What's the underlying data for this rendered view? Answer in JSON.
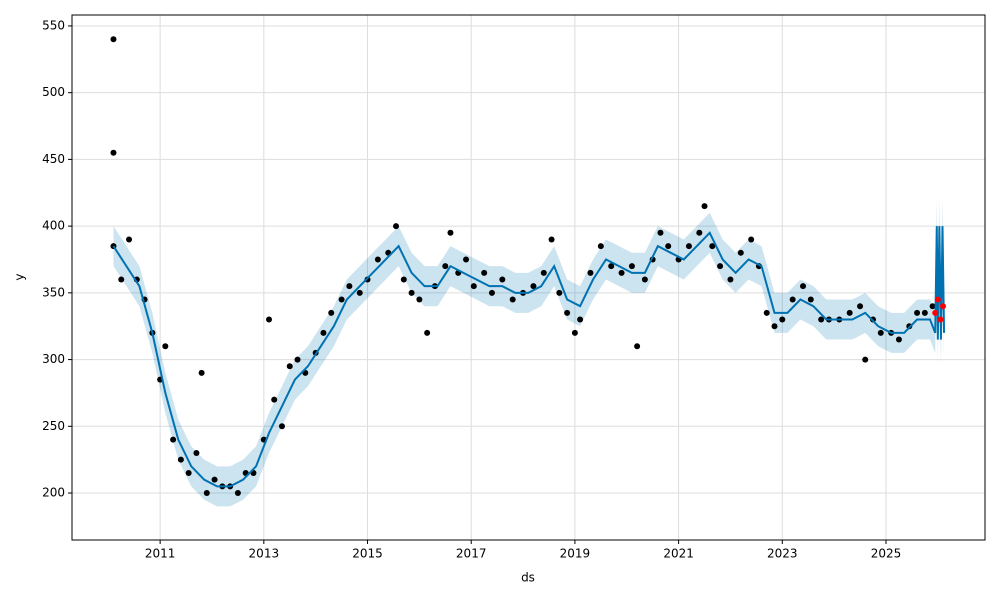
{
  "chart_data": {
    "type": "line",
    "xlabel": "ds",
    "ylabel": "y",
    "xlim": [
      2009.3,
      2026.91
    ],
    "ylim": [
      164.8,
      558.2
    ],
    "xticks": [
      2011,
      2013,
      2015,
      2017,
      2019,
      2021,
      2023,
      2025
    ],
    "yticks": [
      200,
      250,
      300,
      350,
      400,
      450,
      500,
      550
    ],
    "grid": true,
    "points": {
      "color": "#000000",
      "x": [
        2010.1,
        2010.1,
        2010.1,
        2010.25,
        2010.4,
        2010.55,
        2010.7,
        2010.85,
        2011.0,
        2011.1,
        2011.25,
        2011.4,
        2011.55,
        2011.7,
        2011.8,
        2011.9,
        2012.05,
        2012.2,
        2012.35,
        2012.5,
        2012.65,
        2012.8,
        2013.0,
        2013.1,
        2013.2,
        2013.35,
        2013.5,
        2013.65,
        2013.8,
        2014.0,
        2014.15,
        2014.3,
        2014.5,
        2014.65,
        2014.85,
        2015.0,
        2015.2,
        2015.4,
        2015.55,
        2015.7,
        2015.85,
        2016.0,
        2016.15,
        2016.3,
        2016.5,
        2016.6,
        2016.75,
        2016.9,
        2017.05,
        2017.25,
        2017.4,
        2017.6,
        2017.8,
        2018.0,
        2018.2,
        2018.4,
        2018.55,
        2018.7,
        2018.85,
        2019.0,
        2019.1,
        2019.3,
        2019.5,
        2019.7,
        2019.9,
        2020.1,
        2020.2,
        2020.35,
        2020.5,
        2020.65,
        2020.8,
        2021.0,
        2021.2,
        2021.4,
        2021.5,
        2021.65,
        2021.8,
        2022.0,
        2022.2,
        2022.4,
        2022.55,
        2022.7,
        2022.85,
        2023.0,
        2023.2,
        2023.4,
        2023.55,
        2023.75,
        2023.9,
        2024.1,
        2024.3,
        2024.5,
        2024.6,
        2024.75,
        2024.9,
        2025.1,
        2025.25,
        2025.45,
        2025.6,
        2025.75,
        2025.9
      ],
      "values": [
        385,
        540,
        455,
        360,
        390,
        360,
        345,
        320,
        285,
        310,
        240,
        225,
        215,
        230,
        290,
        200,
        210,
        205,
        205,
        200,
        215,
        215,
        240,
        330,
        270,
        250,
        295,
        300,
        290,
        305,
        320,
        335,
        345,
        355,
        350,
        360,
        375,
        380,
        400,
        360,
        350,
        345,
        320,
        355,
        370,
        395,
        365,
        375,
        355,
        365,
        350,
        360,
        345,
        350,
        355,
        365,
        390,
        350,
        335,
        320,
        330,
        365,
        385,
        370,
        365,
        370,
        310,
        360,
        375,
        395,
        385,
        375,
        385,
        395,
        415,
        385,
        370,
        360,
        380,
        390,
        370,
        335,
        325,
        330,
        345,
        355,
        345,
        330,
        330,
        330,
        335,
        340,
        300,
        330,
        320,
        320,
        315,
        325,
        335,
        335,
        340
      ]
    },
    "forecast": {
      "color": "#0072B2",
      "band_color": "#0072B2",
      "x": [
        2010.1,
        2010.35,
        2010.6,
        2010.85,
        2011.1,
        2011.35,
        2011.6,
        2011.85,
        2012.1,
        2012.35,
        2012.6,
        2012.85,
        2013.1,
        2013.35,
        2013.6,
        2013.85,
        2014.1,
        2014.35,
        2014.6,
        2014.85,
        2015.1,
        2015.35,
        2015.6,
        2015.85,
        2016.1,
        2016.35,
        2016.6,
        2016.85,
        2017.1,
        2017.35,
        2017.6,
        2017.85,
        2018.1,
        2018.35,
        2018.6,
        2018.85,
        2019.1,
        2019.35,
        2019.6,
        2019.85,
        2020.1,
        2020.35,
        2020.6,
        2020.85,
        2021.1,
        2021.35,
        2021.6,
        2021.85,
        2022.1,
        2022.35,
        2022.6,
        2022.85,
        2023.1,
        2023.35,
        2023.6,
        2023.85,
        2024.1,
        2024.35,
        2024.6,
        2024.85,
        2025.1,
        2025.35,
        2025.6,
        2025.85,
        2025.95,
        2025.98,
        2026.0,
        2026.03,
        2026.06,
        2026.09,
        2026.12
      ],
      "values": [
        385,
        370,
        355,
        320,
        275,
        240,
        220,
        210,
        205,
        205,
        210,
        220,
        245,
        265,
        285,
        295,
        310,
        325,
        345,
        355,
        365,
        375,
        385,
        365,
        355,
        355,
        370,
        365,
        360,
        355,
        355,
        350,
        350,
        355,
        370,
        345,
        340,
        360,
        375,
        370,
        365,
        365,
        385,
        380,
        375,
        385,
        395,
        375,
        365,
        375,
        370,
        335,
        335,
        345,
        340,
        330,
        330,
        330,
        335,
        325,
        320,
        320,
        330,
        330,
        320,
        400,
        315,
        400,
        315,
        400,
        320
      ],
      "lower": [
        370,
        355,
        340,
        305,
        260,
        225,
        205,
        195,
        190,
        190,
        195,
        205,
        230,
        250,
        270,
        280,
        295,
        310,
        330,
        340,
        350,
        360,
        370,
        350,
        340,
        340,
        355,
        350,
        345,
        340,
        340,
        335,
        335,
        340,
        355,
        330,
        325,
        345,
        360,
        355,
        350,
        350,
        370,
        365,
        360,
        370,
        380,
        360,
        350,
        360,
        355,
        320,
        320,
        330,
        325,
        315,
        315,
        315,
        320,
        310,
        305,
        305,
        315,
        315,
        305,
        385,
        295,
        385,
        295,
        385,
        300
      ],
      "upper": [
        400,
        385,
        370,
        335,
        290,
        255,
        235,
        225,
        220,
        220,
        225,
        235,
        260,
        280,
        300,
        310,
        325,
        340,
        360,
        370,
        380,
        390,
        400,
        380,
        370,
        370,
        385,
        380,
        375,
        370,
        370,
        365,
        365,
        370,
        385,
        360,
        355,
        375,
        390,
        385,
        380,
        380,
        400,
        395,
        390,
        400,
        410,
        390,
        380,
        390,
        385,
        350,
        350,
        360,
        355,
        345,
        345,
        345,
        350,
        340,
        335,
        335,
        345,
        345,
        335,
        420,
        335,
        420,
        335,
        420,
        340
      ]
    },
    "recent": {
      "color": "#ff0000",
      "x": [
        2025.95,
        2026.0,
        2026.05,
        2026.1
      ],
      "values": [
        335,
        345,
        330,
        340
      ]
    }
  }
}
